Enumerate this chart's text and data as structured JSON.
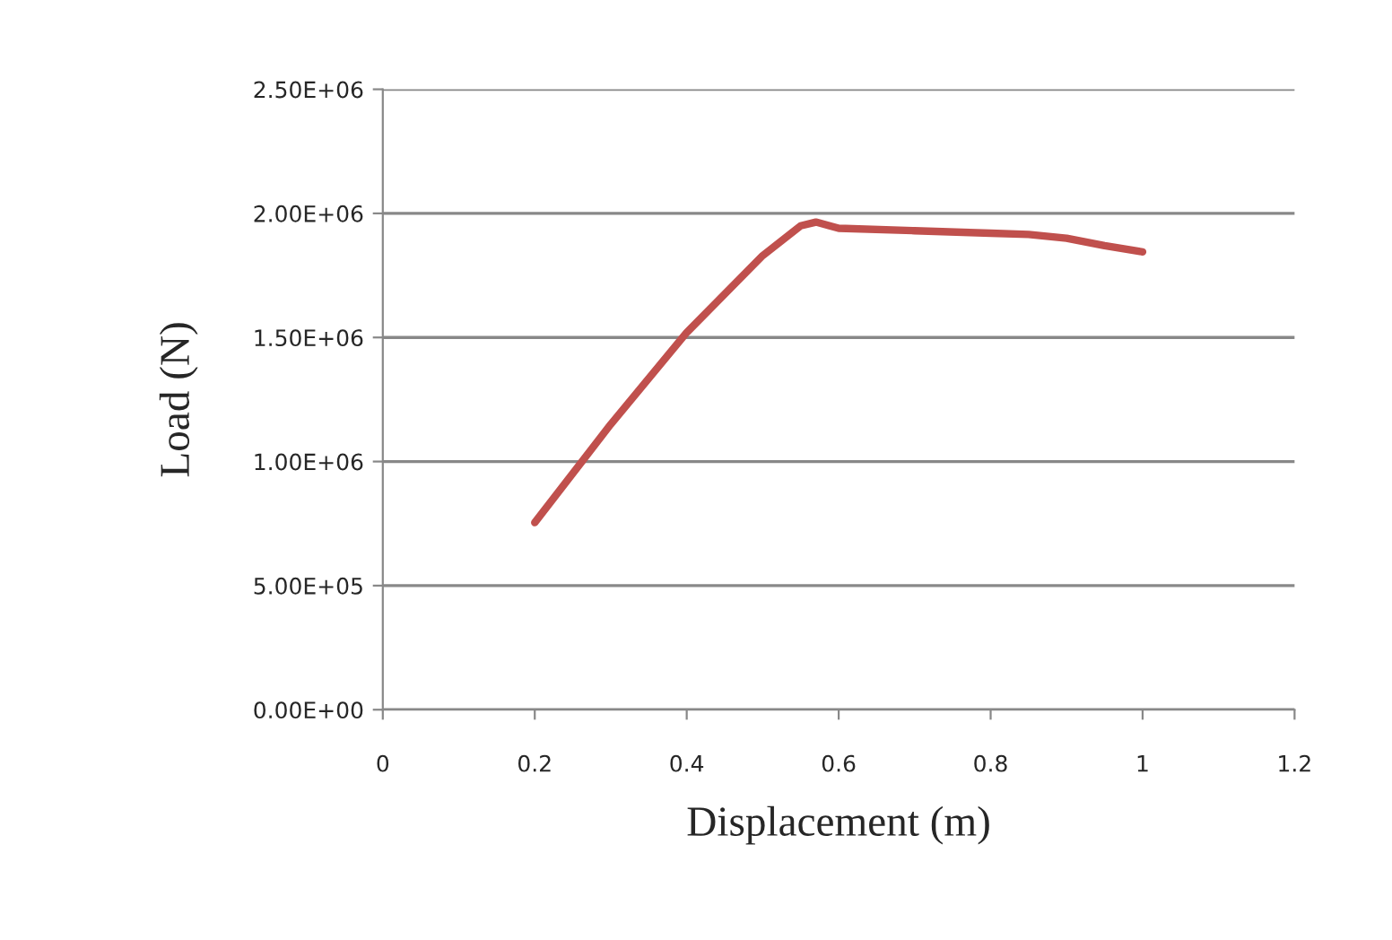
{
  "chart_data": {
    "type": "line",
    "xlabel": "Displacement (m)",
    "ylabel": "Load (N)",
    "x": [
      0.2,
      0.3,
      0.4,
      0.5,
      0.55,
      0.57,
      0.6,
      0.7,
      0.8,
      0.85,
      0.9,
      0.95,
      1.0
    ],
    "series": [
      {
        "color": "#c0504d",
        "values": [
          754000,
          1150000,
          1520000,
          1830000,
          1950000,
          1965000,
          1940000,
          1930000,
          1920000,
          1915000,
          1900000,
          1870000,
          1845000
        ]
      }
    ],
    "xlim": [
      0,
      1.2
    ],
    "xticks": [
      0,
      0.2,
      0.4,
      0.6,
      0.8,
      1,
      1.2
    ],
    "ylim": [
      0,
      2500000
    ],
    "yticks": [
      {
        "value": 0,
        "label": "0.00E+00"
      },
      {
        "value": 500000,
        "label": "5.00E+05"
      },
      {
        "value": 1000000,
        "label": "1.00E+06"
      },
      {
        "value": 1500000,
        "label": "1.50E+06"
      },
      {
        "value": 2000000,
        "label": "2.00E+06"
      },
      {
        "value": 2500000,
        "label": "2.50E+06"
      }
    ],
    "grid": "y",
    "marker": "none",
    "line_style": "solid",
    "legend": false
  }
}
